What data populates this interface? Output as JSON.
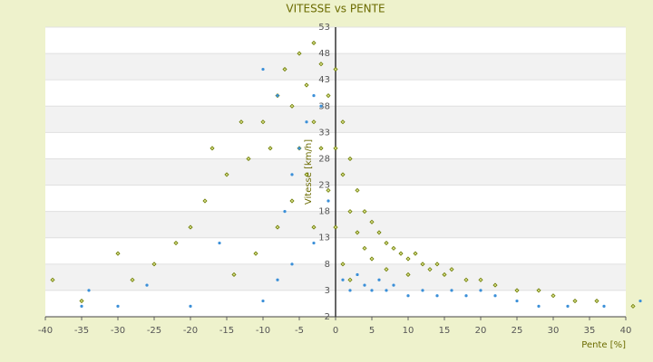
{
  "chart_data": {
    "type": "scatter",
    "title": "VITESSE vs PENTE",
    "xlabel": "Pente [%]",
    "ylabel": "Vitesse [km/h]",
    "xlim": [
      -40,
      40
    ],
    "xticks": [
      -40,
      -35,
      -30,
      -25,
      -20,
      -15,
      -10,
      -5,
      0,
      5,
      10,
      15,
      20,
      25,
      30,
      35,
      40
    ],
    "ylim": [
      -2,
      53
    ],
    "yticks": [
      -2,
      3,
      8,
      13,
      18,
      23,
      28,
      33,
      38,
      43,
      48,
      53
    ],
    "grid": true,
    "series": [
      {
        "color": "#6b7a00",
        "x": [
          -5,
          -3,
          -7,
          -4,
          -2,
          -6,
          -8,
          -10,
          -9,
          -12,
          -15,
          -18,
          -20,
          -22,
          -25,
          -28,
          -35,
          -3,
          -1,
          -2,
          -4,
          -6,
          -8,
          -11,
          -14,
          -1,
          0,
          0,
          0,
          1,
          1,
          2,
          2,
          3,
          3,
          4,
          4,
          5,
          5,
          6,
          7,
          7,
          8,
          9,
          10,
          10,
          11,
          12,
          13,
          14,
          15,
          16,
          18,
          20,
          22,
          25,
          28,
          30,
          33,
          36,
          41,
          -39,
          -30,
          -17,
          -13,
          -5,
          -3,
          1,
          2
        ],
        "values": [
          48,
          50,
          45,
          42,
          46,
          38,
          40,
          35,
          30,
          28,
          25,
          20,
          15,
          12,
          8,
          5,
          1,
          35,
          40,
          30,
          25,
          20,
          15,
          10,
          6,
          22,
          15,
          30,
          45,
          25,
          35,
          28,
          18,
          22,
          14,
          18,
          11,
          16,
          9,
          14,
          12,
          7,
          11,
          10,
          9,
          6,
          10,
          8,
          7,
          8,
          6,
          7,
          5,
          5,
          4,
          3,
          3,
          2,
          1,
          1,
          0,
          5,
          10,
          30,
          35,
          30,
          15,
          8,
          5
        ]
      },
      {
        "color": "#3a8fd8",
        "x": [
          -35,
          -30,
          -20,
          -10,
          -8,
          -6,
          -5,
          -4,
          -3,
          -2,
          -6,
          -7,
          -3,
          -1,
          1,
          2,
          3,
          4,
          5,
          6,
          7,
          8,
          10,
          12,
          14,
          16,
          18,
          20,
          22,
          25,
          28,
          32,
          37,
          42,
          -10,
          -8,
          -16,
          -26,
          -34
        ],
        "values": [
          0,
          0,
          0,
          1,
          5,
          8,
          30,
          35,
          40,
          38,
          25,
          18,
          12,
          20,
          5,
          3,
          6,
          4,
          3,
          5,
          3,
          4,
          2,
          3,
          2,
          3,
          2,
          3,
          2,
          1,
          0,
          0,
          0,
          1,
          45,
          40,
          12,
          4,
          3
        ]
      }
    ]
  }
}
